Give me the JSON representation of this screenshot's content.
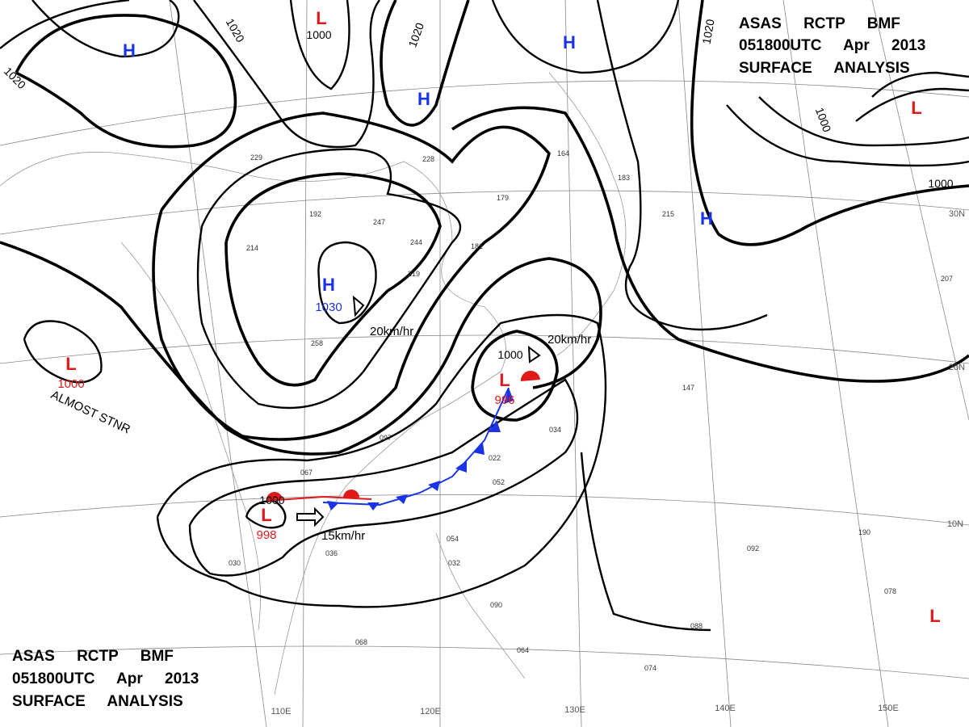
{
  "header_top": [
    "ASAS RCTP BMF",
    "051800UTC Apr 2013",
    "SURFACE ANALYSIS"
  ],
  "header_bottom": [
    "ASAS RCTP BMF",
    "051800UTC Apr 2013",
    "SURFACE ANALYSIS"
  ],
  "highs": [
    {
      "label": "H"
    },
    {
      "label": "H"
    },
    {
      "label": "H"
    },
    {
      "label": "H",
      "value": "1030"
    },
    {
      "label": "H"
    }
  ],
  "lows": [
    {
      "label": "L"
    },
    {
      "label": "L"
    },
    {
      "label": "L",
      "value": "1000"
    },
    {
      "label": "L",
      "value": "996"
    },
    {
      "label": "L",
      "value": "998"
    },
    {
      "label": "L"
    }
  ],
  "isobar_labels": [
    "1020",
    "1020",
    "1020",
    "1020",
    "1000",
    "1000",
    "1000",
    "1000",
    "1000"
  ],
  "motion_labels": [
    "20km/hr",
    "20km/hr",
    "15km/hr"
  ],
  "status_label": "ALMOST STNR",
  "latitude_labels": [
    "30N",
    "20N",
    "10N"
  ],
  "longitude_labels": [
    "110E",
    "120E",
    "130E",
    "140E",
    "150E"
  ],
  "station_values": [
    "229",
    "192",
    "247",
    "258",
    "214",
    "179",
    "181",
    "244",
    "219",
    "228",
    "164",
    "183",
    "215",
    "147",
    "097",
    "067",
    "022",
    "036",
    "030",
    "054",
    "032",
    "090",
    "064",
    "068",
    "074",
    "088",
    "078",
    "092",
    "190",
    "207",
    "052",
    "034"
  ]
}
